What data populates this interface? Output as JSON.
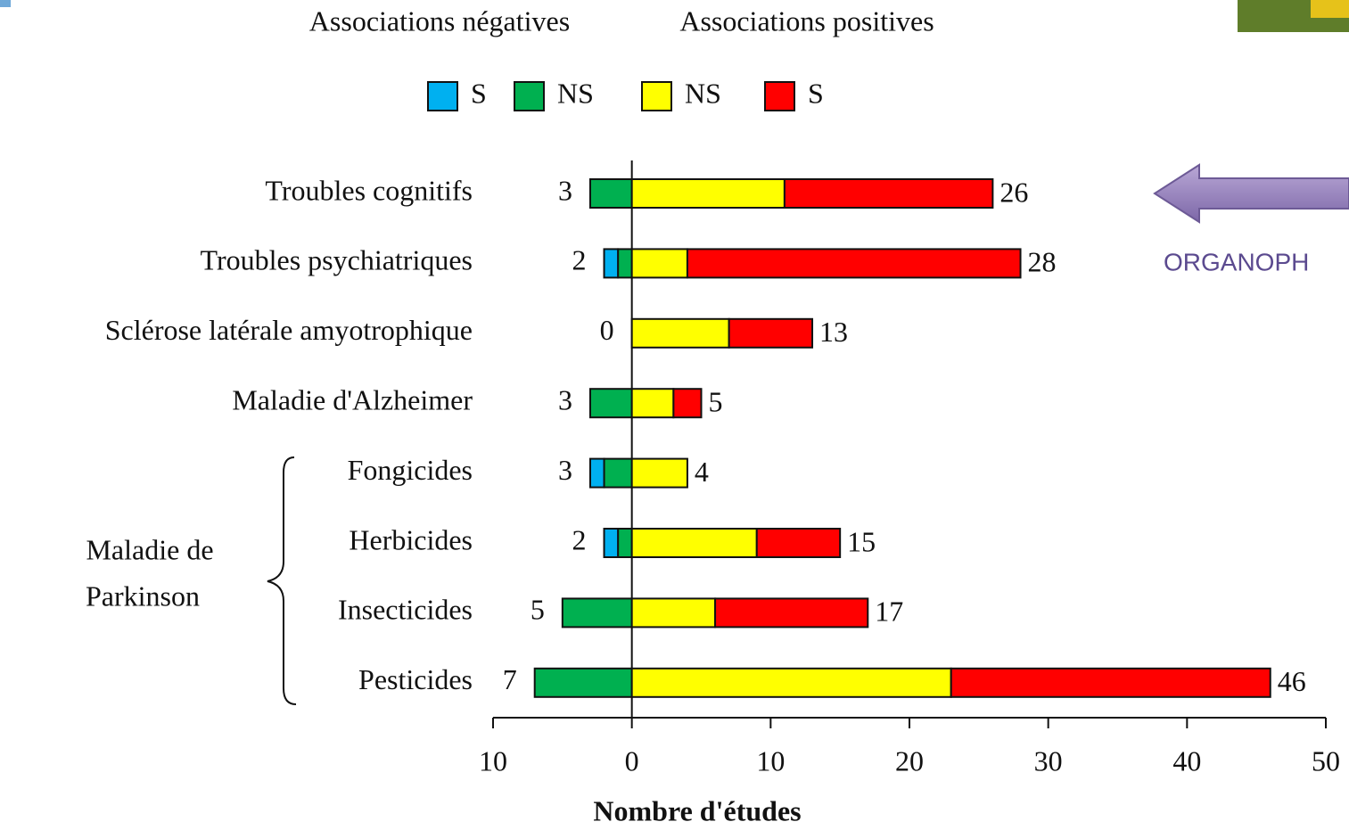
{
  "chart_data": {
    "type": "diverging-bar",
    "group_headings": [
      "Associations négatives",
      "Associations positives"
    ],
    "categories": [
      "Troubles cognitifs",
      "Troubles psychiatriques",
      "Sclérose latérale amyotrophique",
      "Maladie d'Alzheimer",
      "Fongicides",
      "Herbicides",
      "Insecticides",
      "Pesticides"
    ],
    "group_label": [
      "Maladie de",
      "Parkinson"
    ],
    "series": [
      {
        "name": "S",
        "color": "#00b0f0",
        "values": [
          0,
          -1,
          0,
          0,
          -1,
          -1,
          0,
          0
        ]
      },
      {
        "name": "NS",
        "color": "#00b050",
        "values": [
          -3,
          -1,
          0,
          -3,
          -2,
          -1,
          -5,
          -7
        ]
      },
      {
        "name": "NS",
        "color": "#ffff00",
        "values": [
          11,
          4,
          7,
          3,
          4,
          9,
          6,
          23
        ]
      },
      {
        "name": "S",
        "color": "#ff0000",
        "values": [
          15,
          24,
          6,
          2,
          0,
          6,
          11,
          23
        ]
      }
    ],
    "negative_totals": [
      3,
      2,
      0,
      3,
      3,
      2,
      5,
      7
    ],
    "positive_totals": [
      26,
      28,
      13,
      5,
      4,
      15,
      17,
      46
    ],
    "xlim": [
      -10,
      50
    ],
    "xticks": [
      {
        "value": -10,
        "label": "10"
      },
      0,
      10,
      20,
      30,
      40,
      50
    ],
    "xlabel": "Nombre d'études"
  },
  "annotation": "ORGANOPH"
}
